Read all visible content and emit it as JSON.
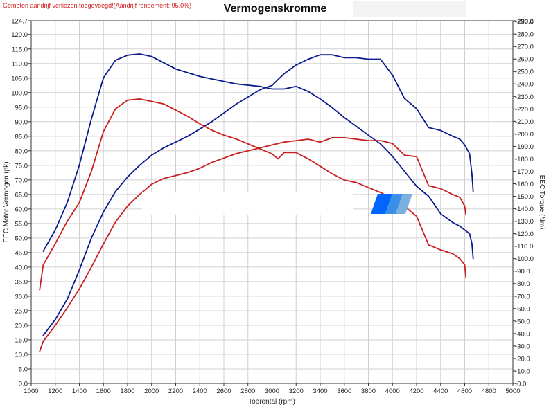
{
  "header": {
    "note": "Gemeten aandrijf verliezen toegevoegd!(Aandrijf rendement: 95.0%)",
    "title": "Vermogenskromme",
    "note_color": "#d42020"
  },
  "chart_data": {
    "type": "line",
    "title": "Vermogenskromme",
    "xlabel": "Toerental (rpm)",
    "ylabel": "EEC Motor Vermogen (pk)",
    "y2label": "EEC Torque (Nm)",
    "xlim": [
      1000,
      5000
    ],
    "ylim": [
      0,
      124.7
    ],
    "y2lim": [
      0,
      290.6
    ],
    "grid": true,
    "x_ticks": [
      "1000",
      "1200",
      "1400",
      "1600",
      "1800",
      "2000",
      "2200",
      "2400",
      "2600",
      "2800",
      "3000",
      "3200",
      "3400",
      "3600",
      "3800",
      "4000",
      "4200",
      "4400",
      "4600",
      "4800",
      "5000"
    ],
    "y_ticks": [
      "0.0",
      "5.0",
      "10.0",
      "15.0",
      "20.0",
      "25.0",
      "30.0",
      "35.0",
      "40.0",
      "45.0",
      "50.0",
      "55.0",
      "60.0",
      "65.0",
      "70.0",
      "75.0",
      "80.0",
      "85.0",
      "90.0",
      "95.0",
      "100.0",
      "105.0",
      "110.0",
      "115.0",
      "120.0",
      "124.7"
    ],
    "y2_ticks": [
      "0.0",
      "10.0",
      "20.0",
      "30.0",
      "40.0",
      "50.0",
      "60.0",
      "70.0",
      "80.0",
      "90.0",
      "100.0",
      "110.0",
      "120.0",
      "130.0",
      "140.0",
      "150.0",
      "160.0",
      "170.0",
      "180.0",
      "190.0",
      "200.0",
      "210.0",
      "220.0",
      "230.0",
      "240.0",
      "250.0",
      "260.0",
      "270.0",
      "280.0",
      "290.0",
      "290.6"
    ],
    "series": [
      {
        "color": "#0a1a8c",
        "axis": "right",
        "x": [
          1100,
          1200,
          1300,
          1400,
          1500,
          1600,
          1700,
          1800,
          1900,
          2000,
          2100,
          2200,
          2300,
          2400,
          2500,
          2600,
          2700,
          2800,
          2900,
          3000,
          3100,
          3200,
          3300,
          3400,
          3500,
          3600,
          3700,
          3800,
          3900,
          4000,
          4100,
          4200,
          4300,
          4400,
          4500,
          4560,
          4600,
          4640,
          4660,
          4670
        ],
        "y": [
          106,
          123,
          145,
          175,
          212,
          245,
          259,
          263,
          264,
          262,
          257,
          252,
          249,
          246,
          244,
          242,
          240,
          239,
          238,
          236,
          236,
          238,
          234,
          228,
          221,
          213,
          206,
          199,
          192,
          182,
          170,
          158,
          150,
          136,
          129,
          126,
          123,
          120,
          112,
          100
        ]
      },
      {
        "color": "#0a1a8c",
        "axis": "left",
        "x": [
          1100,
          1200,
          1300,
          1400,
          1500,
          1600,
          1700,
          1800,
          1900,
          2000,
          2100,
          2200,
          2300,
          2400,
          2500,
          2600,
          2700,
          2800,
          2900,
          3000,
          3100,
          3200,
          3300,
          3400,
          3500,
          3600,
          3700,
          3800,
          3900,
          4000,
          4100,
          4200,
          4300,
          4400,
          4500,
          4560,
          4600,
          4640,
          4660,
          4670
        ],
        "y": [
          16.5,
          22,
          29,
          39,
          50,
          59,
          66,
          71,
          75,
          78.5,
          81,
          83,
          85,
          87.5,
          90,
          93,
          96,
          98.5,
          101,
          102.5,
          106.5,
          109.5,
          111.5,
          113,
          113,
          112,
          112,
          111.5,
          111.5,
          106,
          98,
          94.5,
          88,
          87,
          85,
          84,
          82,
          79,
          72,
          66
        ]
      },
      {
        "color": "#c81e1e",
        "axis": "right",
        "x": [
          1070,
          1100,
          1200,
          1300,
          1400,
          1500,
          1600,
          1700,
          1800,
          1900,
          2000,
          2100,
          2200,
          2300,
          2400,
          2500,
          2600,
          2700,
          2800,
          2900,
          3000,
          3050,
          3100,
          3200,
          3300,
          3400,
          3500,
          3600,
          3700,
          3800,
          3900,
          4000,
          4100,
          4200,
          4300,
          4400,
          4500,
          4560,
          4600,
          4610
        ],
        "y": [
          75,
          95,
          112,
          130,
          145,
          170,
          202,
          220,
          227,
          228,
          226,
          224,
          219,
          214,
          208,
          203,
          199,
          196,
          192,
          188,
          184,
          180,
          185,
          185,
          180,
          174,
          168,
          163,
          161,
          157,
          153,
          148,
          142,
          134,
          111,
          107,
          104,
          100,
          95,
          85
        ]
      },
      {
        "color": "#c81e1e",
        "axis": "left",
        "x": [
          1070,
          1100,
          1200,
          1300,
          1400,
          1500,
          1600,
          1700,
          1800,
          1900,
          2000,
          2100,
          2200,
          2300,
          2400,
          2500,
          2600,
          2700,
          2800,
          2900,
          3000,
          3100,
          3200,
          3300,
          3400,
          3500,
          3600,
          3700,
          3800,
          3900,
          4000,
          4100,
          4200,
          4300,
          4400,
          4500,
          4560,
          4600,
          4610
        ],
        "y": [
          11,
          14.5,
          20,
          26,
          32.5,
          40,
          48,
          55.5,
          61,
          65,
          68.5,
          70.5,
          71.5,
          72.5,
          74,
          76,
          77.5,
          79,
          80,
          81,
          82,
          83,
          83.5,
          84,
          83,
          84.5,
          84.5,
          84,
          83.5,
          83.5,
          82.5,
          78.5,
          78,
          68,
          67,
          65,
          64,
          61,
          58
        ]
      }
    ]
  }
}
